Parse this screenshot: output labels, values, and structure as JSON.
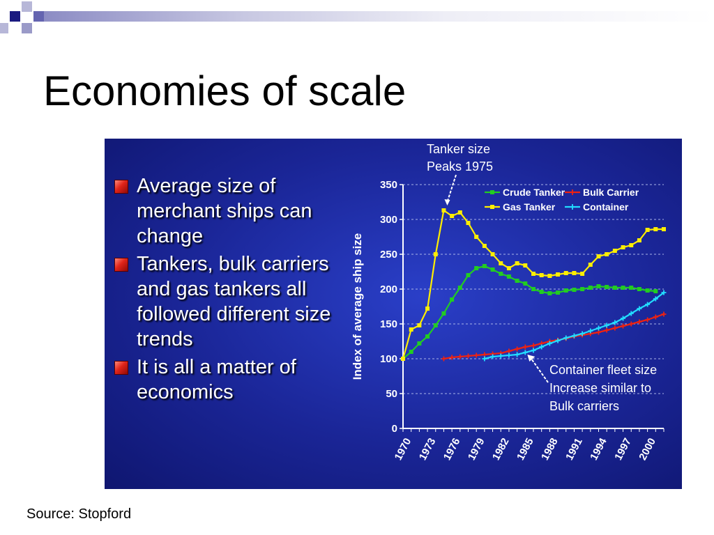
{
  "slide": {
    "title": "Economies of scale",
    "bullets": [
      "Average size of merchant ships can change",
      "Tankers, bulk carriers and gas tankers all followed different size trends",
      "It is all a matter of economics"
    ],
    "source": "Source: Stopford"
  },
  "colors": {
    "panel": "#1a2596",
    "crude_tanker": "#22cc22",
    "bulk_carrier": "#ee2211",
    "gas_tanker": "#ffee00",
    "container": "#22ddff",
    "bullet": "#e0241a"
  },
  "chart_data": {
    "type": "line",
    "title": "",
    "xlabel": "",
    "ylabel": "Index of average ship size",
    "xlim": [
      1970,
      2002
    ],
    "ylim": [
      0,
      350
    ],
    "yticks": [
      0,
      50,
      100,
      150,
      200,
      250,
      300,
      350
    ],
    "xtick_labels": [
      "1970",
      "1973",
      "1976",
      "1979",
      "1982",
      "1985",
      "1988",
      "1991",
      "1994",
      "1997",
      "2000"
    ],
    "grid": true,
    "legend": "top-right",
    "series": [
      {
        "name": "Crude Tanker",
        "color": "#22cc22",
        "marker": "square",
        "x": [
          1970,
          1971,
          1972,
          1973,
          1974,
          1975,
          1976,
          1977,
          1978,
          1979,
          1980,
          1981,
          1982,
          1983,
          1984,
          1985,
          1986,
          1987,
          1988,
          1989,
          1990,
          1991,
          1992,
          1993,
          1994,
          1995,
          1996,
          1997,
          1998,
          1999,
          2000,
          2001
        ],
        "y": [
          100,
          110,
          122,
          132,
          148,
          165,
          185,
          202,
          220,
          230,
          233,
          228,
          222,
          218,
          212,
          208,
          200,
          196,
          194,
          195,
          198,
          199,
          200,
          202,
          204,
          203,
          202,
          202,
          202,
          200,
          198,
          197
        ]
      },
      {
        "name": "Bulk Carrier",
        "color": "#ee2211",
        "marker": "plus",
        "x": [
          1975,
          1976,
          1977,
          1978,
          1979,
          1980,
          1981,
          1982,
          1983,
          1984,
          1985,
          1986,
          1987,
          1988,
          1989,
          1990,
          1991,
          1992,
          1993,
          1994,
          1995,
          1996,
          1997,
          1998,
          1999,
          2000,
          2001,
          2002
        ],
        "y": [
          100,
          102,
          103,
          104,
          105,
          106,
          107,
          108,
          111,
          114,
          117,
          119,
          122,
          125,
          127,
          129,
          132,
          134,
          136,
          138,
          141,
          144,
          147,
          150,
          153,
          156,
          160,
          164
        ]
      },
      {
        "name": "Gas Tanker",
        "color": "#ffee00",
        "marker": "square",
        "x": [
          1970,
          1971,
          1972,
          1973,
          1974,
          1975,
          1976,
          1977,
          1978,
          1979,
          1980,
          1981,
          1982,
          1983,
          1984,
          1985,
          1986,
          1987,
          1988,
          1989,
          1990,
          1991,
          1992,
          1993,
          1994,
          1995,
          1996,
          1997,
          1998,
          1999,
          2000,
          2001,
          2002
        ],
        "y": [
          100,
          142,
          148,
          172,
          250,
          313,
          305,
          310,
          295,
          275,
          262,
          250,
          237,
          230,
          237,
          234,
          222,
          220,
          219,
          221,
          223,
          223,
          222,
          235,
          247,
          250,
          255,
          260,
          263,
          270,
          285,
          286,
          286
        ]
      },
      {
        "name": "Container",
        "color": "#22ddff",
        "marker": "plus",
        "x": [
          1980,
          1981,
          1982,
          1983,
          1984,
          1985,
          1986,
          1987,
          1988,
          1989,
          1990,
          1991,
          1992,
          1993,
          1994,
          1995,
          1996,
          1997,
          1998,
          1999,
          2000,
          2001,
          2002
        ],
        "y": [
          100,
          103,
          104,
          105,
          106,
          109,
          112,
          117,
          122,
          126,
          130,
          133,
          136,
          140,
          144,
          148,
          152,
          158,
          165,
          172,
          178,
          186,
          195
        ]
      }
    ],
    "annotations": [
      {
        "text": [
          "Tanker size",
          "Peaks 1975"
        ],
        "target_x": 1975,
        "target_y": 313
      },
      {
        "text": [
          "Container fleet size",
          "Increase similar to",
          "Bulk carriers"
        ],
        "target_x": 1985,
        "target_y": 109
      }
    ]
  }
}
